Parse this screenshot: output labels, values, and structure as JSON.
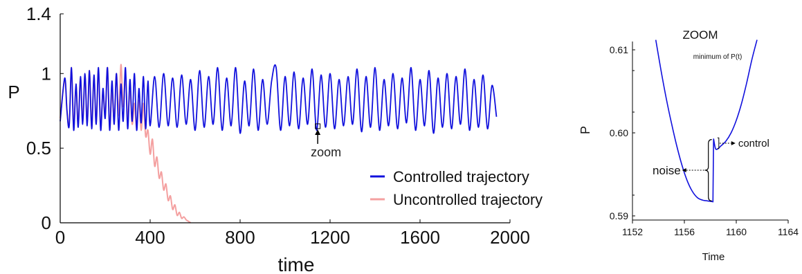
{
  "chart_data": [
    {
      "type": "line",
      "title": "",
      "xlabel": "time",
      "ylabel": "P",
      "xlim": [
        0,
        2000
      ],
      "ylim": [
        0,
        1.4
      ],
      "xticks": [
        "0",
        "400",
        "800",
        "1200",
        "1600",
        "2000"
      ],
      "yticks": [
        "0",
        "0.5",
        "1",
        "1.4"
      ],
      "grid": false,
      "legend_placement": "bottom-right",
      "annotation": {
        "label": "zoom",
        "x": 1145,
        "y": 0.64
      },
      "series": [
        {
          "name": "Controlled trajectory",
          "color": "#1010dd",
          "x": [
            0,
            20,
            30,
            40,
            50,
            60,
            70,
            80,
            90,
            100,
            110,
            120,
            130,
            140,
            150,
            160,
            170,
            180,
            190,
            200,
            210,
            220,
            230,
            240,
            250,
            260,
            270,
            280,
            290,
            300,
            310,
            320,
            330,
            340,
            350,
            360,
            370,
            380,
            390,
            400,
            420,
            440,
            460,
            480,
            500,
            520,
            540,
            560,
            580,
            600,
            620,
            640,
            660,
            680,
            700,
            720,
            740,
            760,
            780,
            800,
            820,
            840,
            860,
            880,
            900,
            920,
            940,
            960,
            980,
            1000,
            1020,
            1040,
            1060,
            1080,
            1100,
            1120,
            1140,
            1160,
            1180,
            1200,
            1220,
            1240,
            1260,
            1280,
            1300,
            1320,
            1340,
            1360,
            1380,
            1400,
            1420,
            1440,
            1460,
            1480,
            1500,
            1520,
            1540,
            1560,
            1580,
            1600,
            1620,
            1640,
            1660,
            1680,
            1700,
            1720,
            1740,
            1760,
            1780,
            1800,
            1820,
            1840,
            1860,
            1880,
            1900,
            1920,
            1940
          ],
          "values": [
            0.68,
            0.97,
            0.75,
            0.65,
            1.04,
            0.62,
            0.93,
            0.64,
            0.98,
            0.66,
            1.0,
            0.65,
            1.02,
            0.63,
            0.99,
            0.66,
            1.04,
            0.62,
            0.9,
            0.7,
            1.04,
            0.62,
            0.95,
            0.66,
            1.0,
            0.62,
            0.93,
            0.68,
            1.04,
            0.63,
            0.96,
            0.68,
            1.0,
            0.62,
            0.9,
            0.67,
            0.98,
            0.63,
            0.95,
            0.65,
            0.98,
            0.64,
            1.0,
            0.65,
            0.97,
            0.64,
            0.99,
            0.66,
            0.96,
            0.62,
            1.02,
            0.64,
            0.98,
            0.66,
            1.04,
            0.62,
            0.97,
            0.65,
            1.04,
            0.6,
            0.95,
            0.65,
            1.03,
            0.62,
            0.96,
            0.66,
            0.95,
            1.04,
            0.62,
            0.98,
            0.65,
            1.01,
            0.63,
            0.97,
            0.66,
            1.03,
            0.62,
            0.99,
            0.64,
            1.0,
            0.63,
            0.96,
            0.65,
            0.98,
            0.66,
            1.03,
            0.61,
            0.98,
            0.64,
            1.04,
            0.62,
            0.96,
            0.65,
            1.0,
            0.63,
            0.97,
            0.67,
            1.04,
            0.62,
            0.96,
            0.65,
            1.02,
            0.6,
            0.97,
            0.64,
            1.0,
            0.63,
            0.98,
            0.66,
            1.03,
            0.62,
            0.96,
            0.64,
            0.99,
            0.63,
            0.92,
            0.71
          ]
        },
        {
          "name": "Uncontrolled trajectory",
          "color": "#f4a0a0",
          "x": [
            0,
            20,
            30,
            40,
            50,
            60,
            70,
            80,
            90,
            100,
            110,
            120,
            130,
            140,
            150,
            160,
            170,
            180,
            190,
            200,
            210,
            220,
            230,
            240,
            250,
            260,
            270,
            280,
            290,
            300,
            310,
            320,
            330,
            340,
            350,
            360,
            370,
            380,
            390,
            400,
            410,
            420,
            430,
            440,
            450,
            460,
            470,
            480,
            490,
            500,
            510,
            520,
            530,
            540,
            550,
            560,
            570,
            580
          ],
          "values": [
            0.7,
            0.96,
            0.75,
            0.66,
            1.04,
            0.64,
            0.92,
            0.66,
            0.97,
            0.68,
            0.99,
            0.67,
            1.02,
            0.64,
            0.98,
            0.67,
            1.03,
            0.64,
            0.88,
            0.72,
            1.04,
            0.64,
            0.88,
            0.7,
            1.0,
            0.72,
            1.06,
            0.78,
            0.98,
            0.7,
            0.88,
            0.66,
            0.8,
            0.64,
            0.82,
            0.62,
            0.8,
            0.58,
            0.62,
            0.46,
            0.56,
            0.38,
            0.44,
            0.3,
            0.34,
            0.22,
            0.26,
            0.15,
            0.18,
            0.09,
            0.12,
            0.05,
            0.07,
            0.03,
            0.04,
            0.02,
            0.01,
            0.0
          ]
        }
      ]
    },
    {
      "type": "line",
      "title": "ZOOM",
      "subtitle": "minimum of P(t)",
      "xlabel": "Time",
      "ylabel": "P",
      "xlim": [
        1152,
        1164
      ],
      "ylim": [
        0.5895,
        0.611
      ],
      "xticks": [
        "1152",
        "1156",
        "1160",
        "1164"
      ],
      "yticks": [
        "0.59",
        "0.60",
        "0.61"
      ],
      "grid": false,
      "annotations": [
        {
          "label": "noise",
          "x": 1157.8,
          "y": 0.5945
        },
        {
          "label": "control",
          "x": 1158.4,
          "y": 0.5988
        }
      ],
      "series": [
        {
          "color": "#1010dd",
          "x": [
            1153.8,
            1154.2,
            1154.6,
            1155.0,
            1155.4,
            1155.8,
            1156.2,
            1156.6,
            1157.0,
            1157.4,
            1157.8,
            1158.2,
            1158.25,
            1158.4,
            1158.6,
            1158.8,
            1159.2,
            1159.6,
            1160.0,
            1160.4,
            1160.8,
            1161.2,
            1161.6
          ],
          "values": [
            0.6112,
            0.6075,
            0.6042,
            0.6012,
            0.5985,
            0.5962,
            0.5943,
            0.593,
            0.5922,
            0.5919,
            0.5918,
            0.5917,
            0.5993,
            0.5981,
            0.5981,
            0.5984,
            0.599,
            0.6,
            0.6015,
            0.6035,
            0.606,
            0.6088,
            0.6112
          ]
        }
      ]
    }
  ]
}
